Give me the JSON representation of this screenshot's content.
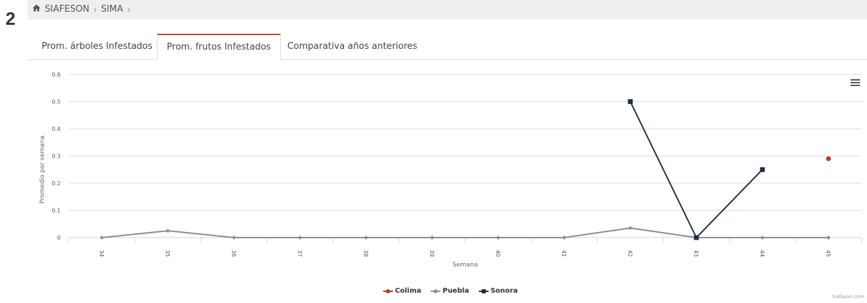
{
  "step_number": "2",
  "breadcrumb": {
    "items": [
      "SIAFESON",
      "SIMA"
    ]
  },
  "tabs": [
    {
      "label": "Prom. árboles Infestados"
    },
    {
      "label": "Prom. frutos Infestados"
    },
    {
      "label": "Comparativa años anteriores"
    }
  ],
  "chart_data": {
    "type": "line",
    "title": "",
    "xlabel": "Semana",
    "ylabel": "Promedio por semana.",
    "categories": [
      "34",
      "35",
      "36",
      "37",
      "38",
      "39",
      "40",
      "41",
      "42",
      "43",
      "44",
      "45"
    ],
    "ylim": [
      0,
      0.6
    ],
    "yticks": [
      "0",
      "0.1",
      "0.2",
      "0.3",
      "0.4",
      "0.5",
      "0.6"
    ],
    "grid": true,
    "legend_position": "bottom-center",
    "series": [
      {
        "name": "Colima",
        "color": "#c2361b",
        "marker": "circle",
        "values": [
          null,
          null,
          null,
          null,
          null,
          null,
          null,
          null,
          null,
          null,
          null,
          0.29
        ]
      },
      {
        "name": "Puebla",
        "color": "#8c8c8c",
        "marker": "diamond",
        "values": [
          0,
          0.025,
          0,
          0,
          0,
          0,
          0,
          0,
          0.035,
          0,
          0,
          0
        ]
      },
      {
        "name": "Sonora",
        "color": "#1b2f45",
        "marker": "square",
        "values": [
          null,
          null,
          null,
          null,
          null,
          null,
          null,
          null,
          0.5,
          0,
          0.25,
          null
        ]
      }
    ]
  },
  "credits": "Siafason.com"
}
